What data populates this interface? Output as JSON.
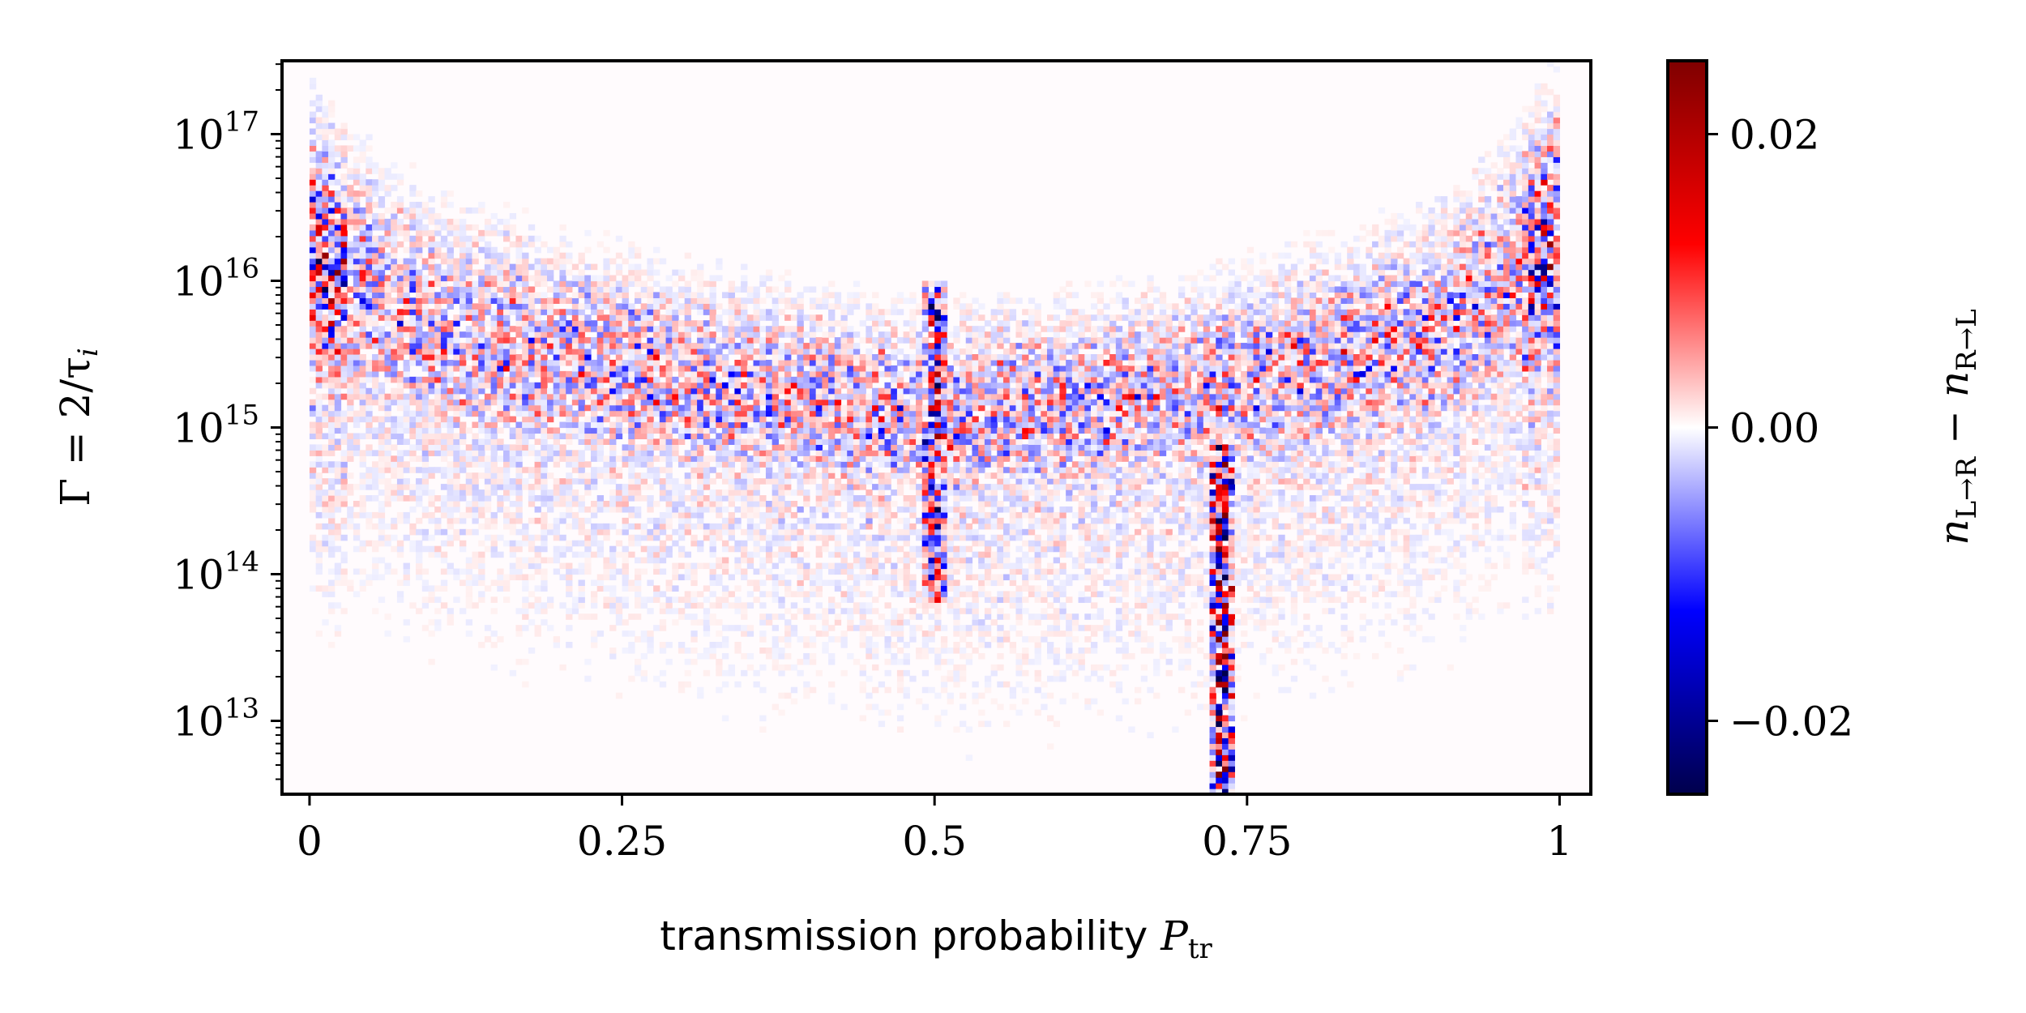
{
  "chart_data": {
    "type": "heatmap",
    "title": "",
    "xlabel": {
      "text": "transmission probability ",
      "math_symbol": "P",
      "math_subscript": "tr"
    },
    "ylabel": {
      "text": "Γ = 2/τ",
      "math_subscript": "i"
    },
    "xlim": [
      -0.022,
      1.025
    ],
    "ylim_log10": [
      12.5,
      17.5
    ],
    "y_scale": "log",
    "grid": false,
    "x_ticks": [
      {
        "value": 0,
        "label": "0"
      },
      {
        "value": 0.25,
        "label": "0.25"
      },
      {
        "value": 0.5,
        "label": "0.5"
      },
      {
        "value": 0.75,
        "label": "0.75"
      },
      {
        "value": 1,
        "label": "1"
      }
    ],
    "y_ticks": [
      {
        "exp": 13,
        "label_base": "10",
        "label_exp": "13"
      },
      {
        "exp": 14,
        "label_base": "10",
        "label_exp": "14"
      },
      {
        "exp": 15,
        "label_base": "10",
        "label_exp": "15"
      },
      {
        "exp": 16,
        "label_base": "10",
        "label_exp": "16"
      },
      {
        "exp": 17,
        "label_base": "10",
        "label_exp": "17"
      }
    ],
    "colorbar": {
      "label": {
        "n1_sub": "L→R",
        "n2_sub": "R→L"
      },
      "range": [
        -0.025,
        0.025
      ],
      "colormap": "seismic",
      "colors": [
        "#00004c",
        "#0000ff",
        "#ffffff",
        "#ff0000",
        "#7f0000"
      ],
      "ticks": [
        {
          "value": 0.02,
          "label": "0.02"
        },
        {
          "value": 0.0,
          "label": "0.00"
        },
        {
          "value": -0.02,
          "label": "−0.02"
        }
      ]
    },
    "features": [
      {
        "description": "dense band, U-shaped envelope",
        "envelope_log10_center": [
          [
            0.0,
            16.1
          ],
          [
            0.1,
            15.65
          ],
          [
            0.3,
            15.3
          ],
          [
            0.5,
            15.05
          ],
          [
            0.7,
            15.2
          ],
          [
            0.9,
            15.6
          ],
          [
            1.0,
            16.2
          ]
        ],
        "amplitude": 0.006
      },
      {
        "description": "vertical streak",
        "x": 0.5,
        "log10_range": [
          13.8,
          16.0
        ],
        "amplitude": 0.015
      },
      {
        "description": "vertical streak",
        "x": 0.73,
        "log10_range": [
          12.5,
          14.9
        ],
        "amplitude": 0.022
      }
    ]
  }
}
